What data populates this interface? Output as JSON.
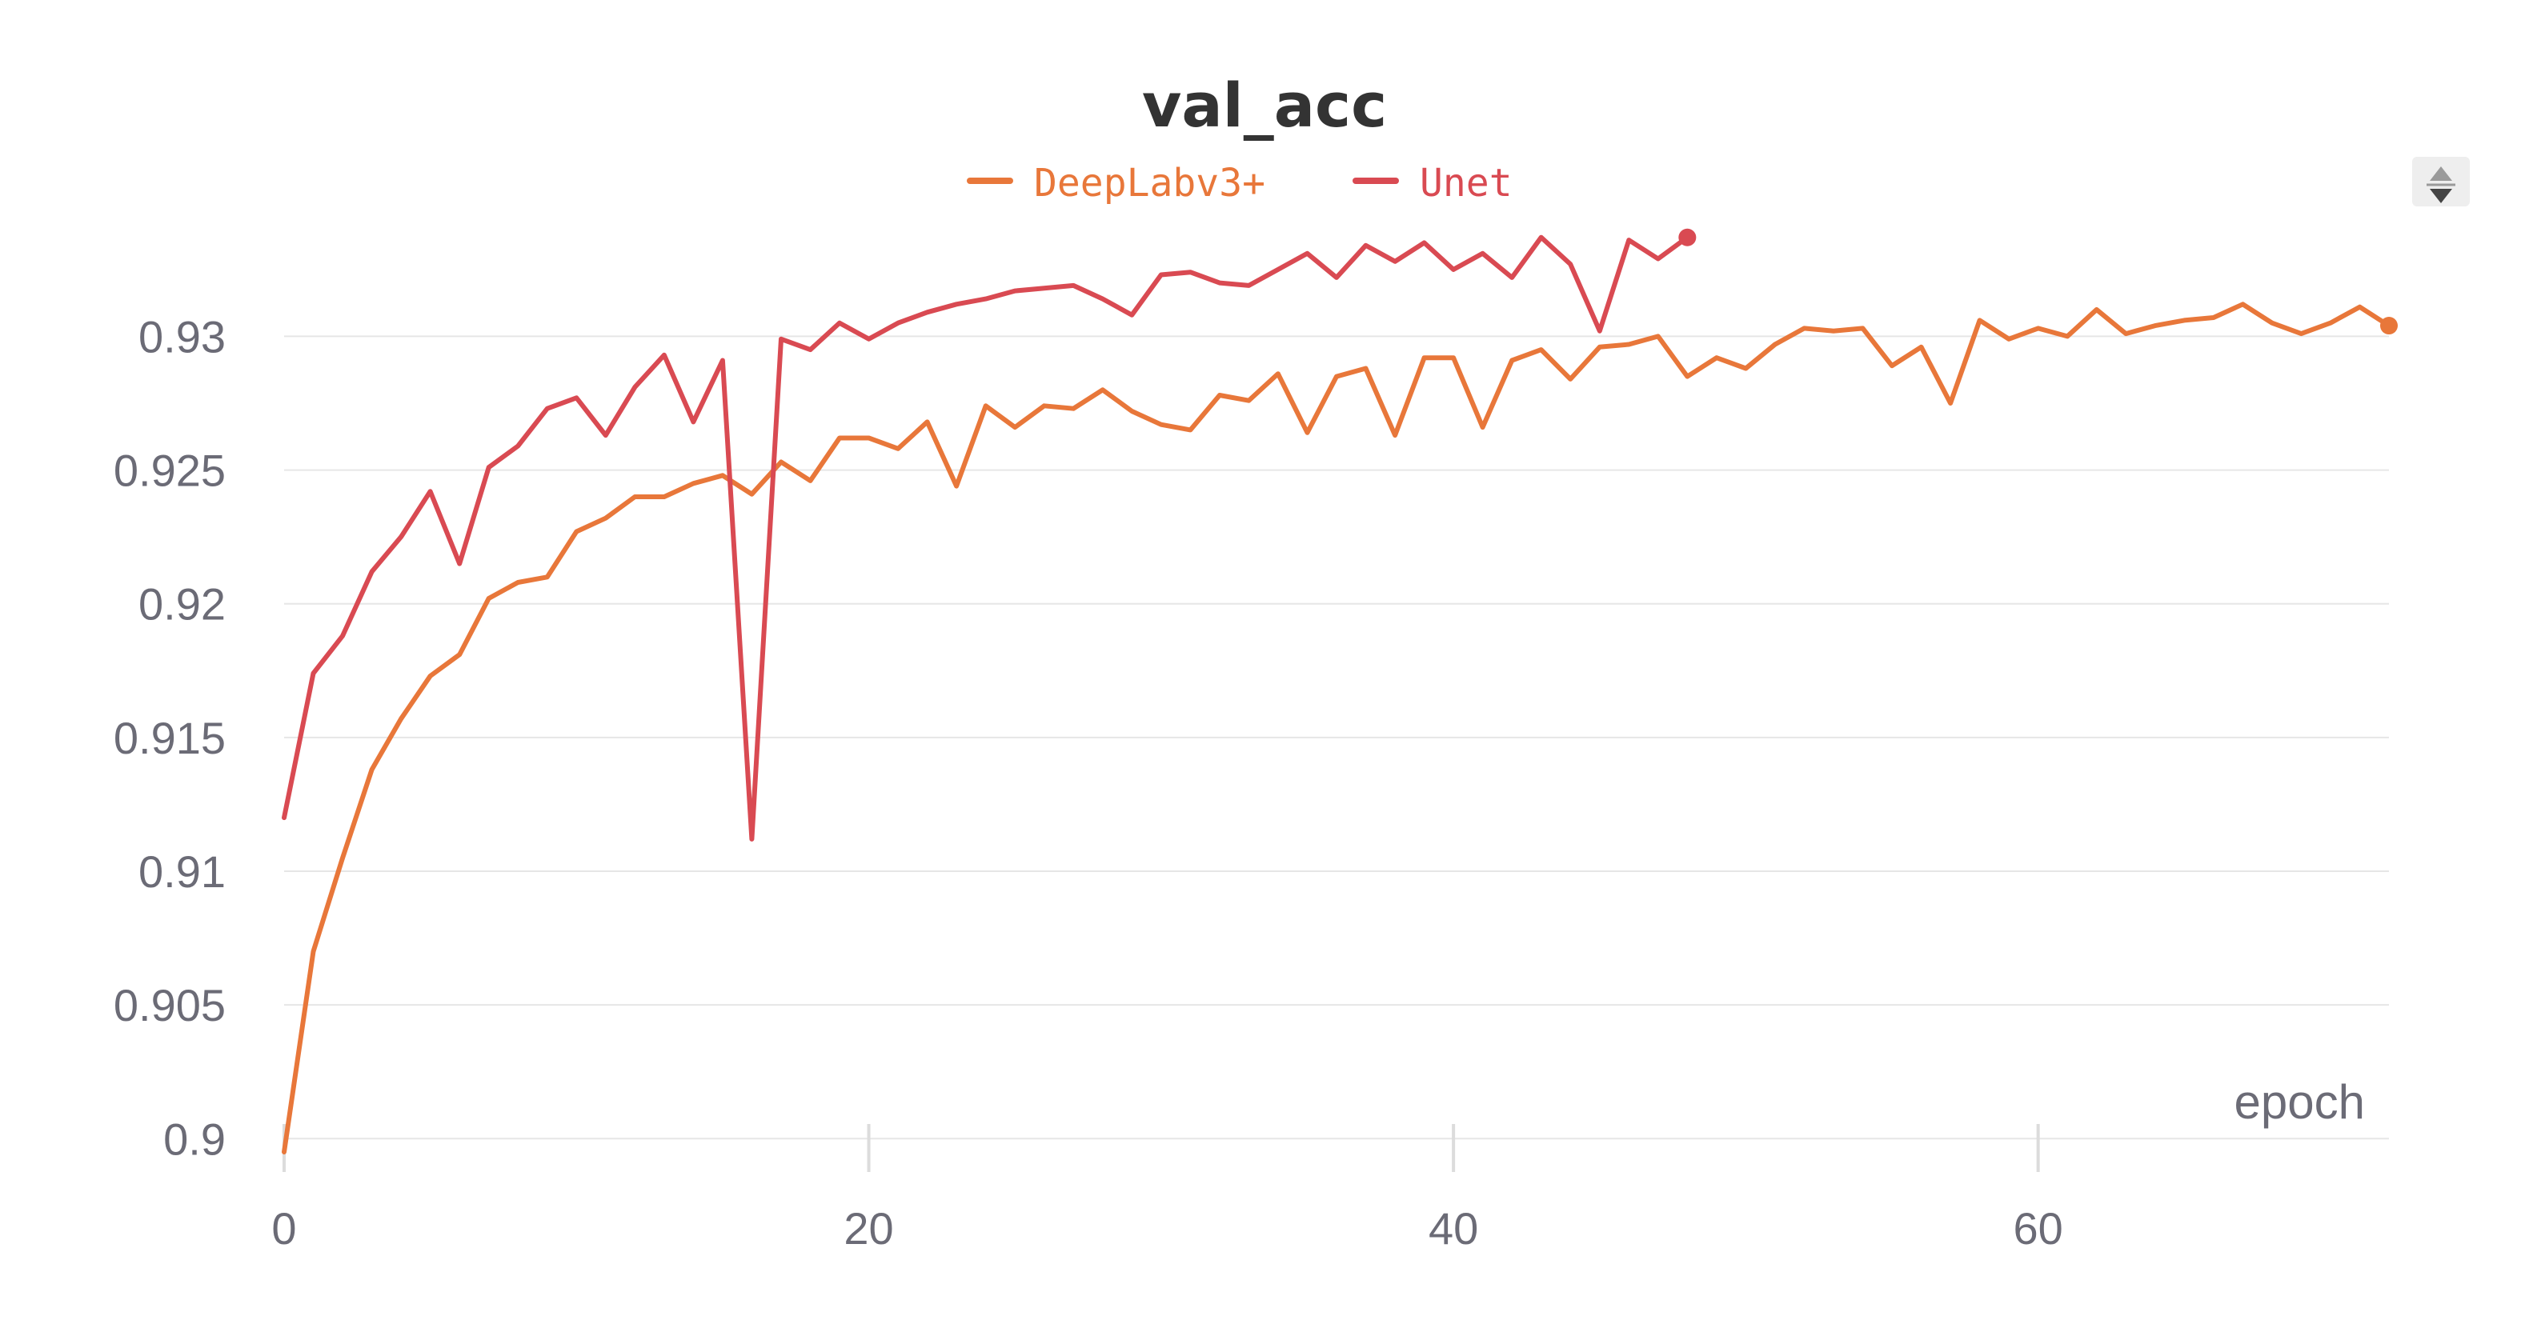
{
  "chart_data": {
    "type": "line",
    "title": "val_acc",
    "xlabel": "epoch",
    "ylabel": "",
    "xlim": [
      0,
      72
    ],
    "ylim": [
      0.8995,
      0.9345
    ],
    "xticks": [
      0,
      20,
      40,
      60
    ],
    "xtick_labels": [
      "0",
      "20",
      "40",
      "60"
    ],
    "yticks": [
      0.9,
      0.905,
      0.91,
      0.915,
      0.92,
      0.925,
      0.93
    ],
    "ytick_labels": [
      "0.9",
      "0.905",
      "0.91",
      "0.915",
      "0.92",
      "0.925",
      "0.93"
    ],
    "grid": true,
    "legend_position": "top-center",
    "series": [
      {
        "name": "DeepLabv3+",
        "color": "#e8773a",
        "x": [
          0,
          1,
          2,
          3,
          4,
          5,
          6,
          7,
          8,
          9,
          10,
          11,
          12,
          13,
          14,
          15,
          16,
          17,
          18,
          19,
          20,
          21,
          22,
          23,
          24,
          25,
          26,
          27,
          28,
          29,
          30,
          31,
          32,
          33,
          34,
          35,
          36,
          37,
          38,
          39,
          40,
          41,
          42,
          43,
          44,
          45,
          46,
          47,
          48,
          49,
          50,
          51,
          52,
          53,
          54,
          55,
          56,
          57,
          58,
          59,
          60,
          61,
          62,
          63,
          64,
          65,
          66,
          67,
          68,
          69,
          70,
          71,
          72
        ],
        "values": [
          0.8995,
          0.907,
          0.9105,
          0.9138,
          0.9157,
          0.9173,
          0.9181,
          0.9202,
          0.9208,
          0.921,
          0.9227,
          0.9232,
          0.924,
          0.924,
          0.9245,
          0.9248,
          0.9241,
          0.9253,
          0.9246,
          0.9262,
          0.9262,
          0.9258,
          0.9268,
          0.9244,
          0.9274,
          0.9266,
          0.9274,
          0.9273,
          0.928,
          0.9272,
          0.9267,
          0.9265,
          0.9278,
          0.9276,
          0.9286,
          0.9264,
          0.9285,
          0.9288,
          0.9263,
          0.9292,
          0.9292,
          0.9266,
          0.9291,
          0.9295,
          0.9284,
          0.9296,
          0.9297,
          0.93,
          0.9285,
          0.9292,
          0.9288,
          0.9297,
          0.9303,
          0.9302,
          0.9303,
          0.9289,
          0.9296,
          0.9275,
          0.9306,
          0.9299,
          0.9303,
          0.93,
          0.931,
          0.9301,
          0.9304,
          0.9306,
          0.9307,
          0.9312,
          0.9305,
          0.9301,
          0.9305,
          0.9311,
          0.9304
        ]
      },
      {
        "name": "Unet",
        "color": "#d94a52",
        "x": [
          0,
          1,
          2,
          3,
          4,
          5,
          6,
          7,
          8,
          9,
          10,
          11,
          12,
          13,
          14,
          15,
          16,
          17,
          18,
          19,
          20,
          21,
          22,
          23,
          24,
          25,
          26,
          27,
          28,
          29,
          30,
          31,
          32,
          33,
          34,
          35,
          36,
          37,
          38,
          39,
          40,
          41,
          42,
          43,
          44,
          45,
          46,
          47,
          48
        ],
        "values": [
          0.912,
          0.9174,
          0.9188,
          0.9212,
          0.9225,
          0.9242,
          0.9215,
          0.9251,
          0.9259,
          0.9273,
          0.9277,
          0.9263,
          0.9281,
          0.9293,
          0.9268,
          0.9291,
          0.9112,
          0.9299,
          0.9295,
          0.9305,
          0.9299,
          0.9305,
          0.9309,
          0.9312,
          0.9314,
          0.9317,
          0.9318,
          0.9319,
          0.9314,
          0.9308,
          0.9323,
          0.9324,
          0.932,
          0.9319,
          0.9325,
          0.9331,
          0.9322,
          0.9334,
          0.9328,
          0.9335,
          0.9325,
          0.9331,
          0.9322,
          0.9337,
          0.9327,
          0.9302,
          0.9336,
          0.9329,
          0.9337
        ]
      }
    ]
  },
  "controls": {
    "zoom_icon": "sort-updown-icon"
  }
}
